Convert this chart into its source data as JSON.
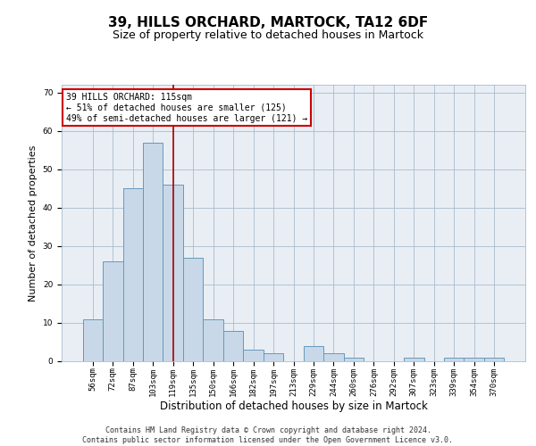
{
  "title": "39, HILLS ORCHARD, MARTOCK, TA12 6DF",
  "subtitle": "Size of property relative to detached houses in Martock",
  "xlabel": "Distribution of detached houses by size in Martock",
  "ylabel": "Number of detached properties",
  "categories": [
    "56sqm",
    "72sqm",
    "87sqm",
    "103sqm",
    "119sqm",
    "135sqm",
    "150sqm",
    "166sqm",
    "182sqm",
    "197sqm",
    "213sqm",
    "229sqm",
    "244sqm",
    "260sqm",
    "276sqm",
    "292sqm",
    "307sqm",
    "323sqm",
    "339sqm",
    "354sqm",
    "370sqm"
  ],
  "values": [
    11,
    26,
    45,
    57,
    46,
    27,
    11,
    8,
    3,
    2,
    0,
    4,
    2,
    1,
    0,
    0,
    1,
    0,
    1,
    1,
    1
  ],
  "bar_color": "#c8d8e8",
  "bar_edge_color": "#6699bb",
  "red_line_index": 4,
  "red_line_color": "#aa0000",
  "annotation_line1": "39 HILLS ORCHARD: 115sqm",
  "annotation_line2": "← 51% of detached houses are smaller (125)",
  "annotation_line3": "49% of semi-detached houses are larger (121) →",
  "annotation_box_color": "#ffffff",
  "annotation_box_edge_color": "#cc0000",
  "ylim": [
    0,
    72
  ],
  "yticks": [
    0,
    10,
    20,
    30,
    40,
    50,
    60,
    70
  ],
  "grid_color": "#aabbcc",
  "background_color": "#e8eef4",
  "footer_line1": "Contains HM Land Registry data © Crown copyright and database right 2024.",
  "footer_line2": "Contains public sector information licensed under the Open Government Licence v3.0.",
  "title_fontsize": 11,
  "subtitle_fontsize": 9,
  "xlabel_fontsize": 8.5,
  "ylabel_fontsize": 8,
  "tick_fontsize": 6.5,
  "annotation_fontsize": 7,
  "footer_fontsize": 6
}
